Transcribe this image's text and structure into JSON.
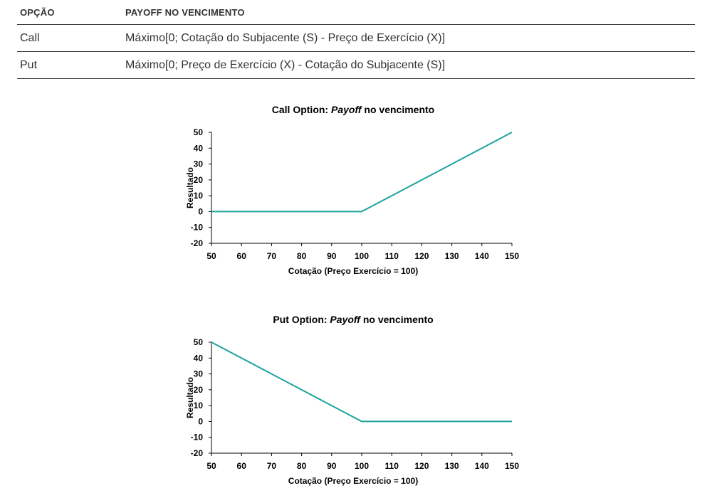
{
  "table": {
    "headers": [
      "OPÇÃO",
      "PAYOFF NO VENCIMENTO"
    ],
    "rows": [
      [
        "Call",
        "Máximo[0; Cotação do Subjacente (S) - Preço de Exercício (X)]"
      ],
      [
        "Put",
        "Máximo[0; Preço de Exercício (X) - Cotação do Subjacente (S)]"
      ]
    ]
  },
  "colors": {
    "line": "#1ba39c",
    "axis": "#000000"
  },
  "chart_data": [
    {
      "type": "line",
      "title_prefix": "Call Option: ",
      "title_italic": "Payoff",
      "title_suffix": " no vencimento",
      "xlabel": "Cotação (Preço Exercício = 100)",
      "ylabel": "Resultado",
      "xlim": [
        50,
        150
      ],
      "ylim": [
        -20,
        50
      ],
      "xticks": [
        50,
        60,
        70,
        80,
        90,
        100,
        110,
        120,
        130,
        140,
        150
      ],
      "yticks": [
        50,
        40,
        30,
        20,
        10,
        0,
        -10,
        -20
      ],
      "grid": false,
      "series": [
        {
          "x": [
            50,
            100,
            150
          ],
          "y": [
            0,
            0,
            50
          ]
        }
      ]
    },
    {
      "type": "line",
      "title_prefix": "Put Option: ",
      "title_italic": "Payoff",
      "title_suffix": " no vencimento",
      "xlabel": "Cotação (Preço Exercício = 100)",
      "ylabel": "Resultado",
      "xlim": [
        50,
        150
      ],
      "ylim": [
        -20,
        50
      ],
      "xticks": [
        50,
        60,
        70,
        80,
        90,
        100,
        110,
        120,
        130,
        140,
        150
      ],
      "yticks": [
        50,
        40,
        30,
        20,
        10,
        0,
        -10,
        -20
      ],
      "grid": false,
      "series": [
        {
          "x": [
            50,
            100,
            150
          ],
          "y": [
            50,
            0,
            0
          ]
        }
      ]
    }
  ]
}
